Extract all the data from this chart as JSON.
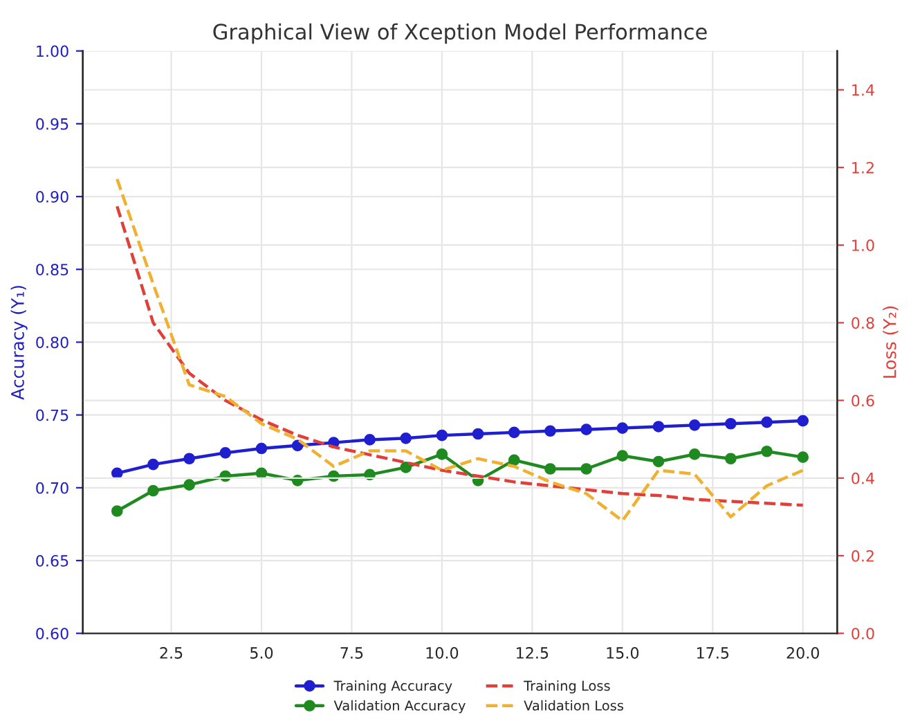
{
  "chart_data": {
    "type": "line",
    "title": "Graphical View of Xception Model Performance",
    "ylabel": "Accuracy (Y₁)",
    "y2label": "Loss (Y₂)",
    "x": [
      1,
      2,
      3,
      4,
      5,
      6,
      7,
      8,
      9,
      10,
      11,
      12,
      13,
      14,
      15,
      16,
      17,
      18,
      19,
      20
    ],
    "xlim": [
      0.05,
      20.95
    ],
    "xticks": [
      2.5,
      {
        "value": 5,
        "label": "5.0"
      },
      7.5,
      {
        "value": 10,
        "label": "10.0"
      },
      12.5,
      {
        "value": 15,
        "label": "15.0"
      },
      17.5,
      {
        "value": 20,
        "label": "20.0"
      }
    ],
    "ylim": [
      0.6,
      1.0
    ],
    "yticks": [
      {
        "value": 0.6,
        "label": "0.60"
      },
      {
        "value": 0.65,
        "label": "0.65"
      },
      {
        "value": 0.7,
        "label": "0.70"
      },
      {
        "value": 0.75,
        "label": "0.75"
      },
      {
        "value": 0.8,
        "label": "0.80"
      },
      {
        "value": 0.85,
        "label": "0.85"
      },
      {
        "value": 0.9,
        "label": "0.90"
      },
      {
        "value": 0.95,
        "label": "0.95"
      },
      {
        "value": 1.0,
        "label": "1.00"
      }
    ],
    "y2lim": [
      0.0,
      1.5
    ],
    "y2ticks": [
      {
        "value": 0,
        "label": "0.0"
      },
      {
        "value": 0.2,
        "label": "0.2"
      },
      {
        "value": 0.4,
        "label": "0.4"
      },
      {
        "value": 0.6,
        "label": "0.6"
      },
      {
        "value": 0.8,
        "label": "0.8"
      },
      {
        "value": 1.0,
        "label": "1.0"
      },
      {
        "value": 1.2,
        "label": "1.2"
      },
      {
        "value": 1.4,
        "label": "1.4"
      }
    ],
    "grid": true,
    "legend": "bottom",
    "series": [
      {
        "name": "Training Accuracy",
        "color": "#1f1fd0",
        "marker": "circle",
        "line_style": "solid",
        "values": [
          0.71,
          0.716,
          0.72,
          0.724,
          0.727,
          0.729,
          0.731,
          0.733,
          0.734,
          0.736,
          0.737,
          0.738,
          0.739,
          0.74,
          0.741,
          0.742,
          0.743,
          0.744,
          0.745,
          0.746
        ]
      },
      {
        "name": "Validation Accuracy",
        "color": "#1f8a1f",
        "marker": "circle",
        "line_style": "solid",
        "values": [
          0.684,
          0.698,
          0.702,
          0.708,
          0.71,
          0.705,
          0.708,
          0.709,
          0.714,
          0.723,
          0.705,
          0.719,
          0.713,
          0.713,
          0.722,
          0.718,
          0.723,
          0.72,
          0.725,
          0.721
        ]
      },
      {
        "name": "Training Loss",
        "color": "#e0403a",
        "marker": "none",
        "line_style": "dashed",
        "axis": "y2",
        "values": [
          1.1,
          0.8,
          0.67,
          0.6,
          0.55,
          0.51,
          0.48,
          0.46,
          0.44,
          0.42,
          0.405,
          0.39,
          0.38,
          0.37,
          0.36,
          0.355,
          0.345,
          0.34,
          0.335,
          0.33
        ]
      },
      {
        "name": "Validation Loss",
        "color": "#f0b030",
        "marker": "none",
        "line_style": "dashed",
        "axis": "y2",
        "values": [
          1.17,
          0.9,
          0.64,
          0.61,
          0.54,
          0.5,
          0.43,
          0.47,
          0.47,
          0.42,
          0.45,
          0.43,
          0.39,
          0.36,
          0.29,
          0.42,
          0.41,
          0.3,
          0.38,
          0.42
        ]
      }
    ]
  }
}
